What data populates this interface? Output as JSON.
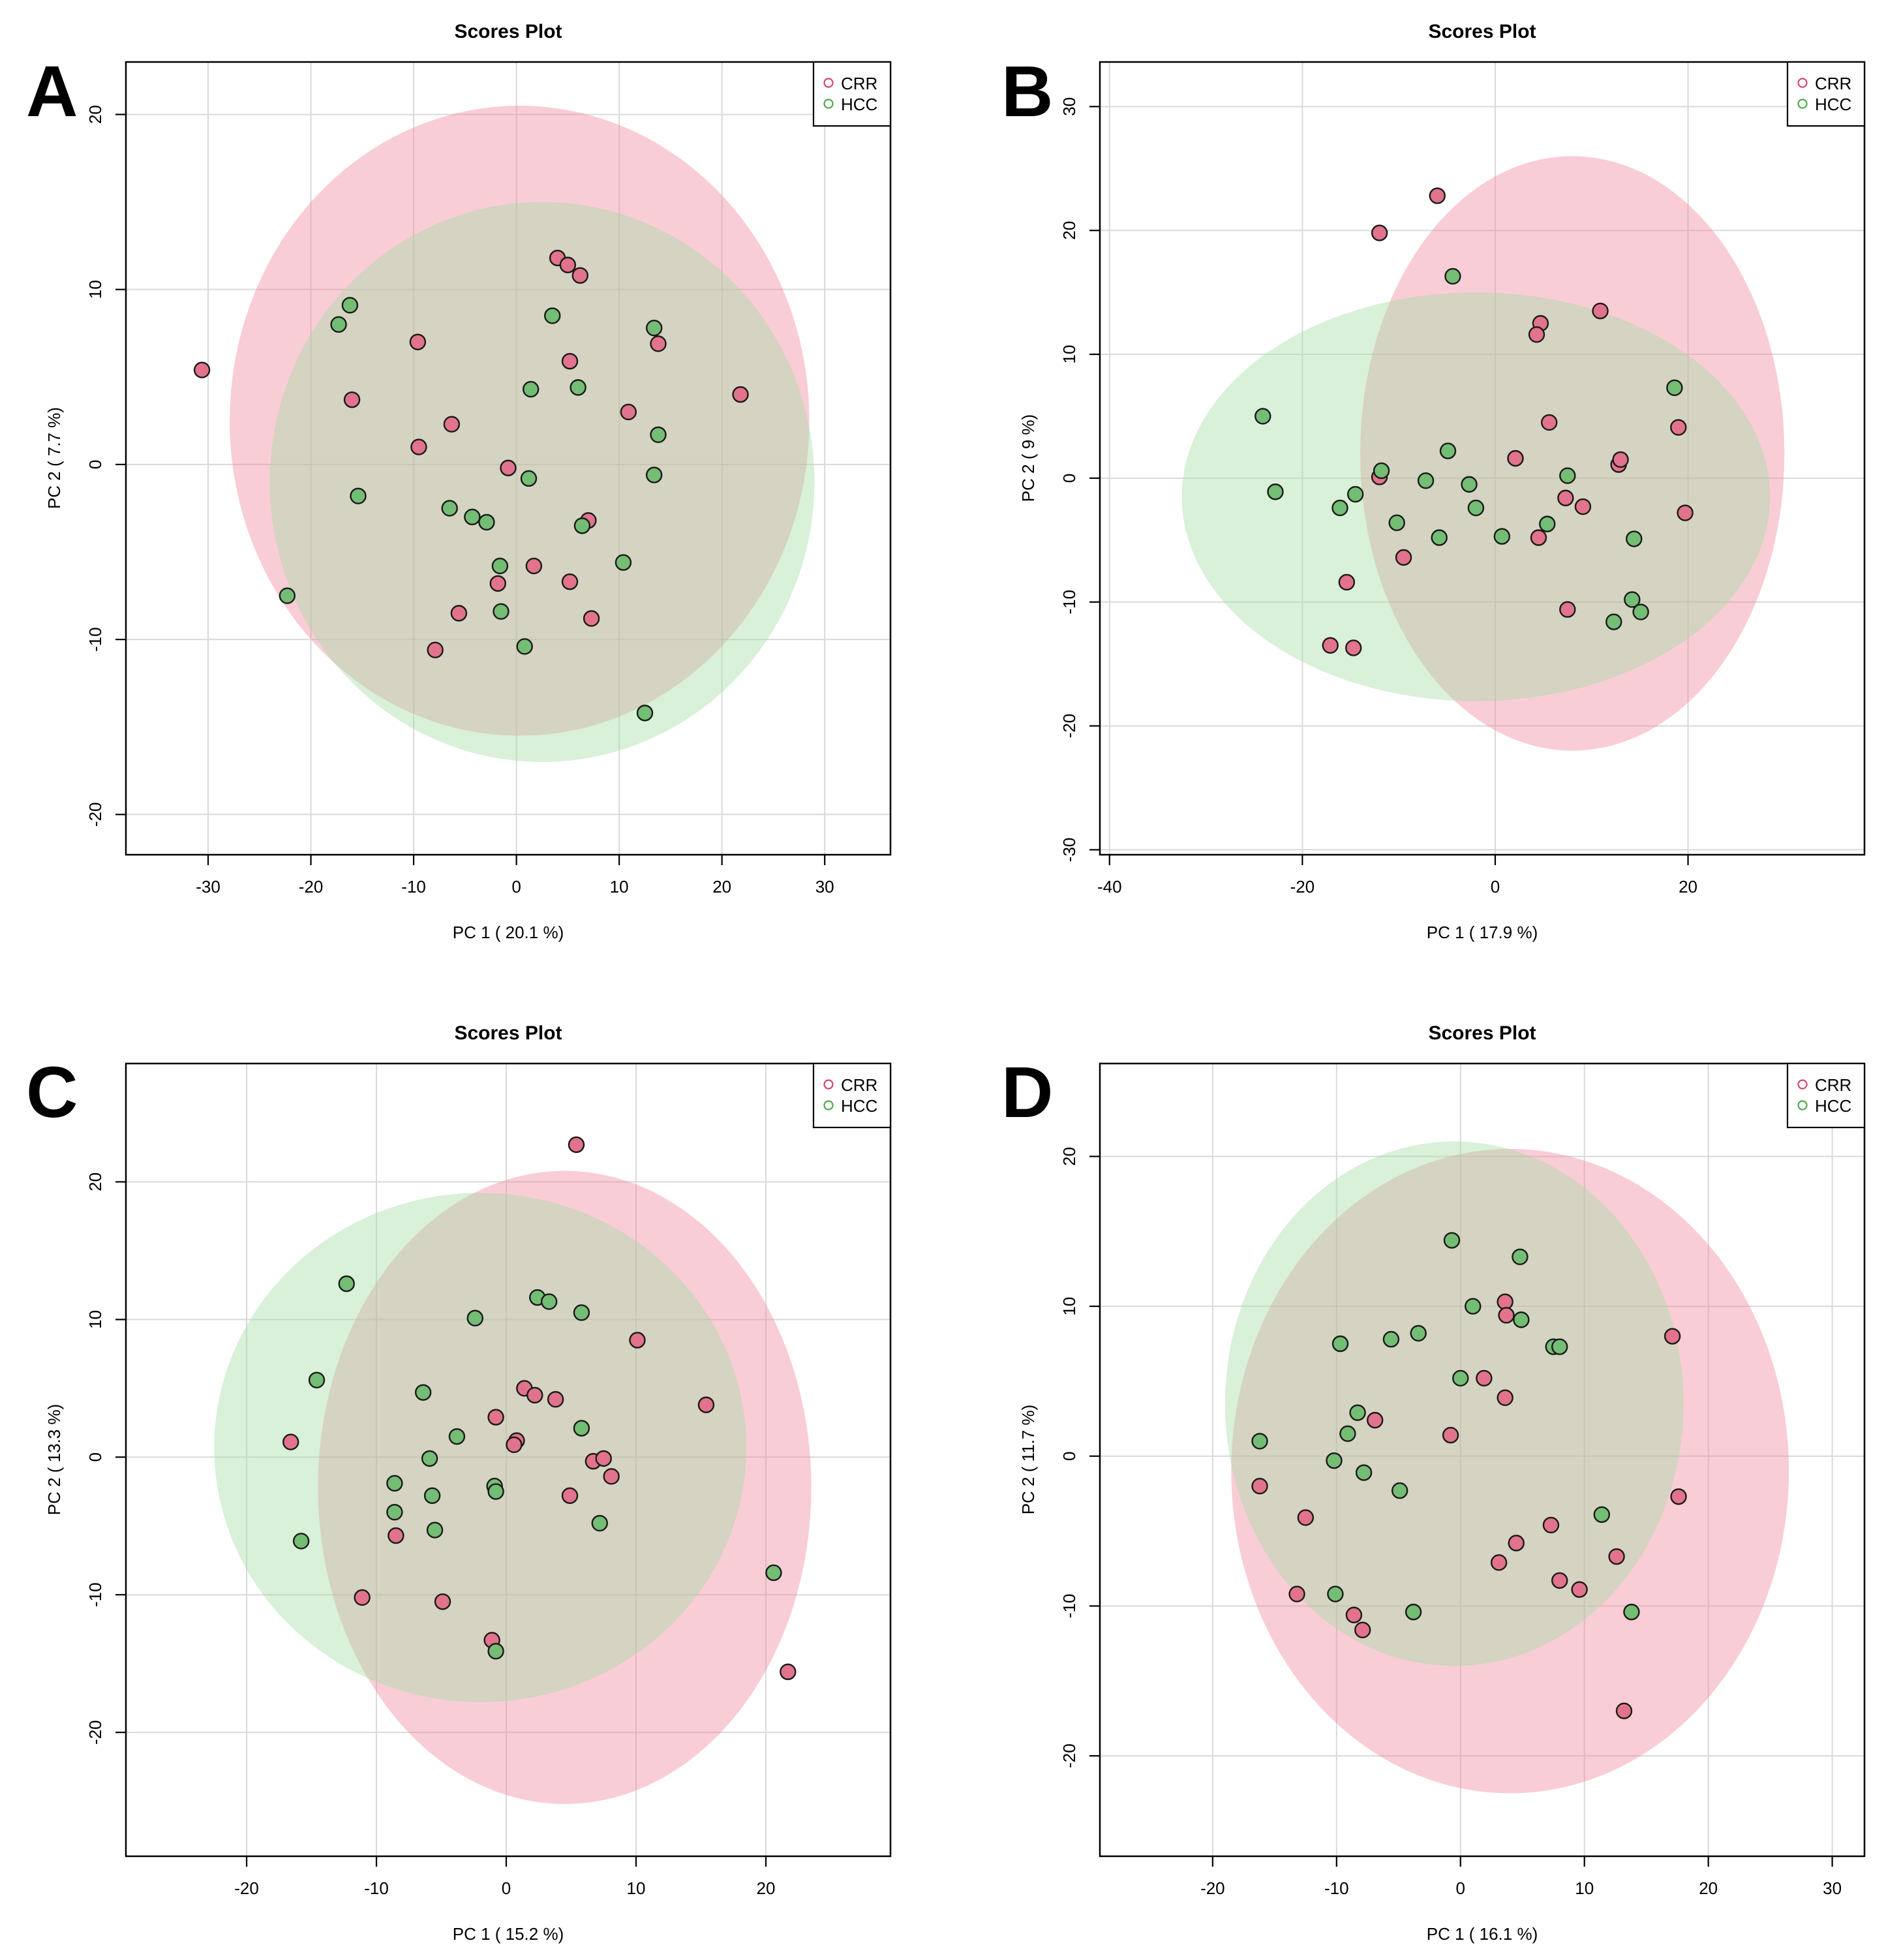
{
  "figure": {
    "description_visible": false
  },
  "colors": {
    "CRR_point": "#e2738c",
    "HCC_point": "#74bd74",
    "CRR_ellipse": "#f0899e",
    "HCC_ellipse": "#a5dca5",
    "CRR_legend": "#d6456a",
    "HCC_legend": "#4daa4d",
    "grid": "#d9d9d9",
    "axis": "#000000"
  },
  "chart_data": [
    {
      "panel_label": "A",
      "type": "scatter",
      "title": "Scores Plot",
      "xlabel": "PC 1 ( 20.1 %)",
      "ylabel": "PC 2 ( 7.7 %)",
      "xlim": [
        -38,
        36.4
      ],
      "ylim": [
        -22.3,
        23
      ],
      "xticks": [
        -30,
        -20,
        -10,
        0,
        10,
        20,
        30
      ],
      "yticks": [
        -20,
        -10,
        0,
        10,
        20
      ],
      "legend": {
        "position": "top-right",
        "entries": [
          "CRR",
          "HCC"
        ]
      },
      "ellipses": [
        {
          "series": "CRR",
          "cx": 0.3,
          "cy": 2.5,
          "rx": 28.2,
          "ry": 18.0
        },
        {
          "series": "HCC",
          "cx": 2.5,
          "cy": -1.0,
          "rx": 26.5,
          "ry": 16.0
        }
      ],
      "series": [
        {
          "name": "CRR",
          "points": [
            [
              -30.6,
              5.4
            ],
            [
              -16,
              3.7
            ],
            [
              -9.6,
              7.0
            ],
            [
              -9.5,
              1.0
            ],
            [
              -6.3,
              2.3
            ],
            [
              -5.6,
              -8.5
            ],
            [
              -7.9,
              -10.6
            ],
            [
              -1.8,
              -6.8
            ],
            [
              -0.8,
              -0.2
            ],
            [
              1.7,
              -5.8
            ],
            [
              4,
              11.8
            ],
            [
              5,
              11.4
            ],
            [
              6.2,
              10.8
            ],
            [
              5.2,
              5.9
            ],
            [
              5.2,
              -6.7
            ],
            [
              7,
              -3.2
            ],
            [
              7.3,
              -8.8
            ],
            [
              10.9,
              3.0
            ],
            [
              13.8,
              6.9
            ],
            [
              21.8,
              4.0
            ]
          ]
        },
        {
          "name": "HCC",
          "points": [
            [
              -22.3,
              -7.5
            ],
            [
              -17.3,
              8.0
            ],
            [
              -16.2,
              9.1
            ],
            [
              -15.4,
              -1.8
            ],
            [
              -6.5,
              -2.5
            ],
            [
              -4.3,
              -3.0
            ],
            [
              -2.9,
              -3.3
            ],
            [
              -1.6,
              -5.8
            ],
            [
              -1.5,
              -8.4
            ],
            [
              0.8,
              -10.4
            ],
            [
              1.2,
              -0.8
            ],
            [
              1.4,
              4.3
            ],
            [
              3.5,
              8.5
            ],
            [
              6,
              4.4
            ],
            [
              6.4,
              -3.5
            ],
            [
              10.4,
              -5.6
            ],
            [
              12.5,
              -14.2
            ],
            [
              13.4,
              7.8
            ],
            [
              13.4,
              -0.6
            ],
            [
              13.8,
              1.7
            ]
          ]
        }
      ]
    },
    {
      "panel_label": "B",
      "type": "scatter",
      "title": "Scores Plot",
      "xlabel": "PC 1 ( 17.9 %)",
      "ylabel": "PC 2 ( 9 %)",
      "xlim": [
        -41,
        38.3
      ],
      "ylim": [
        -30.4,
        33.6
      ],
      "xticks": [
        -40,
        -20,
        0,
        20
      ],
      "yticks": [
        -30,
        -20,
        -10,
        0,
        10,
        20,
        30
      ],
      "legend": {
        "position": "top-right",
        "entries": [
          "CRR",
          "HCC"
        ]
      },
      "ellipses": [
        {
          "series": "CRR",
          "cx": 8.0,
          "cy": 2.0,
          "rx": 22.0,
          "ry": 24.0
        },
        {
          "series": "HCC",
          "cx": -2.0,
          "cy": -1.5,
          "rx": 30.5,
          "ry": 16.5
        }
      ],
      "series": [
        {
          "name": "CRR",
          "points": [
            [
              -6,
              22.8
            ],
            [
              -12,
              19.8
            ],
            [
              4.7,
              12.5
            ],
            [
              4.3,
              11.6
            ],
            [
              10.9,
              13.5
            ],
            [
              -12,
              0.1
            ],
            [
              -15.4,
              -8.4
            ],
            [
              -17.1,
              -13.5
            ],
            [
              -14.7,
              -13.7
            ],
            [
              -9.5,
              -6.4
            ],
            [
              2.1,
              1.6
            ],
            [
              5.6,
              4.5
            ],
            [
              4.5,
              -4.8
            ],
            [
              7.5,
              -10.6
            ],
            [
              7.3,
              -1.6
            ],
            [
              9.1,
              -2.3
            ],
            [
              12.8,
              1.1
            ],
            [
              13.0,
              1.5
            ],
            [
              19,
              4.1
            ],
            [
              19.7,
              -2.8
            ]
          ]
        },
        {
          "name": "HCC",
          "points": [
            [
              -24.1,
              5.0
            ],
            [
              -22.8,
              -1.1
            ],
            [
              -16.1,
              -2.4
            ],
            [
              -14.5,
              -1.3
            ],
            [
              -11.8,
              0.6
            ],
            [
              -10.2,
              -3.6
            ],
            [
              -7.2,
              -0.2
            ],
            [
              -5.8,
              -4.8
            ],
            [
              -4.4,
              16.3
            ],
            [
              -4.9,
              2.2
            ],
            [
              -2.7,
              -0.5
            ],
            [
              -2.0,
              -2.4
            ],
            [
              0.7,
              -4.7
            ],
            [
              5.4,
              -3.7
            ],
            [
              7.5,
              0.2
            ],
            [
              12.3,
              -11.6
            ],
            [
              14.2,
              -9.8
            ],
            [
              14.4,
              -4.9
            ],
            [
              15.1,
              -10.8
            ],
            [
              18.6,
              7.3
            ]
          ]
        }
      ]
    },
    {
      "panel_label": "C",
      "type": "scatter",
      "title": "Scores Plot",
      "xlabel": "PC 1 ( 15.2 %)",
      "ylabel": "PC 2 ( 13.3 %)",
      "xlim": [
        -29.3,
        29.6
      ],
      "ylim": [
        -29,
        28.6
      ],
      "xticks": [
        -20,
        -10,
        0,
        10,
        20
      ],
      "yticks": [
        -20,
        -10,
        0,
        10,
        20
      ],
      "legend": {
        "position": "top-right",
        "entries": [
          "CRR",
          "HCC"
        ]
      },
      "ellipses": [
        {
          "series": "CRR",
          "cx": 4.5,
          "cy": -2.2,
          "rx": 19.0,
          "ry": 23.0
        },
        {
          "series": "HCC",
          "cx": -2.0,
          "cy": 0.7,
          "rx": 20.5,
          "ry": 18.5
        }
      ],
      "series": [
        {
          "name": "CRR",
          "points": [
            [
              5.4,
              22.7
            ],
            [
              -16.6,
              1.1
            ],
            [
              -11.1,
              -10.2
            ],
            [
              -8.5,
              -5.7
            ],
            [
              -4.9,
              -10.5
            ],
            [
              -1.1,
              -13.3
            ],
            [
              -0.8,
              2.9
            ],
            [
              0.8,
              1.2
            ],
            [
              0.6,
              0.9
            ],
            [
              1.4,
              5.0
            ],
            [
              2.2,
              4.5
            ],
            [
              3.8,
              4.2
            ],
            [
              4.9,
              -2.8
            ],
            [
              6.7,
              -0.3
            ],
            [
              7.5,
              -0.1
            ],
            [
              8.1,
              -1.4
            ],
            [
              10.1,
              8.5
            ],
            [
              15.4,
              3.8
            ],
            [
              21.7,
              -15.6
            ]
          ]
        },
        {
          "name": "HCC",
          "points": [
            [
              -12.3,
              12.6
            ],
            [
              -14.6,
              5.6
            ],
            [
              -15.8,
              -6.1
            ],
            [
              -8.6,
              -1.9
            ],
            [
              -8.6,
              -4.0
            ],
            [
              -6.4,
              4.7
            ],
            [
              -5.9,
              -0.1
            ],
            [
              -5.7,
              -2.8
            ],
            [
              -5.5,
              -5.3
            ],
            [
              -3.8,
              1.5
            ],
            [
              -2.4,
              10.1
            ],
            [
              -0.9,
              -2.1
            ],
            [
              -0.8,
              -2.5
            ],
            [
              -0.8,
              -14.1
            ],
            [
              2.4,
              11.6
            ],
            [
              3.3,
              11.3
            ],
            [
              5.8,
              10.5
            ],
            [
              5.8,
              2.1
            ],
            [
              7.2,
              -4.8
            ],
            [
              20.6,
              -8.4
            ]
          ]
        }
      ]
    },
    {
      "panel_label": "D",
      "type": "scatter",
      "title": "Scores Plot",
      "xlabel": "PC 1 ( 16.1 %)",
      "ylabel": "PC 2 ( 11.7 %)",
      "xlim": [
        -29.1,
        32.6
      ],
      "ylim": [
        -26.7,
        26.2
      ],
      "xticks": [
        -20,
        -10,
        0,
        10,
        20,
        30
      ],
      "yticks": [
        -20,
        -10,
        0,
        10,
        20
      ],
      "legend": {
        "position": "top-right",
        "entries": [
          "CRR",
          "HCC"
        ]
      },
      "ellipses": [
        {
          "series": "CRR",
          "cx": 4.0,
          "cy": -1.0,
          "rx": 22.5,
          "ry": 21.5
        },
        {
          "series": "HCC",
          "cx": -0.5,
          "cy": 3.5,
          "rx": 18.5,
          "ry": 17.5
        }
      ],
      "series": [
        {
          "name": "CRR",
          "points": [
            [
              -16.2,
              -2.0
            ],
            [
              -13.2,
              -9.2
            ],
            [
              -12.5,
              -4.1
            ],
            [
              -8.6,
              -10.6
            ],
            [
              -7.9,
              -11.6
            ],
            [
              -6.9,
              2.4
            ],
            [
              -0.8,
              1.4
            ],
            [
              1.9,
              5.2
            ],
            [
              3.1,
              -7.1
            ],
            [
              3.6,
              10.3
            ],
            [
              3.7,
              9.4
            ],
            [
              3.6,
              3.9
            ],
            [
              4.5,
              -5.8
            ],
            [
              7.3,
              -4.6
            ],
            [
              8,
              -8.3
            ],
            [
              9.6,
              -8.9
            ],
            [
              12.6,
              -6.7
            ],
            [
              13.2,
              -17.0
            ],
            [
              17.1,
              8.0
            ],
            [
              17.6,
              -2.7
            ]
          ]
        },
        {
          "name": "HCC",
          "points": [
            [
              -16.2,
              1.0
            ],
            [
              -10.2,
              -0.3
            ],
            [
              -10.1,
              -9.2
            ],
            [
              -9.7,
              7.5
            ],
            [
              -9.1,
              1.5
            ],
            [
              -8.3,
              2.9
            ],
            [
              -7.8,
              -1.1
            ],
            [
              -5.6,
              7.8
            ],
            [
              -4.9,
              -2.3
            ],
            [
              -3.8,
              -10.4
            ],
            [
              -3.4,
              8.2
            ],
            [
              -0.7,
              14.4
            ],
            [
              0.0,
              5.2
            ],
            [
              1.0,
              10.0
            ],
            [
              4.8,
              13.3
            ],
            [
              4.9,
              9.1
            ],
            [
              7.5,
              7.3
            ],
            [
              8.0,
              7.3
            ],
            [
              11.4,
              -3.9
            ],
            [
              13.8,
              -10.4
            ]
          ]
        }
      ]
    }
  ]
}
